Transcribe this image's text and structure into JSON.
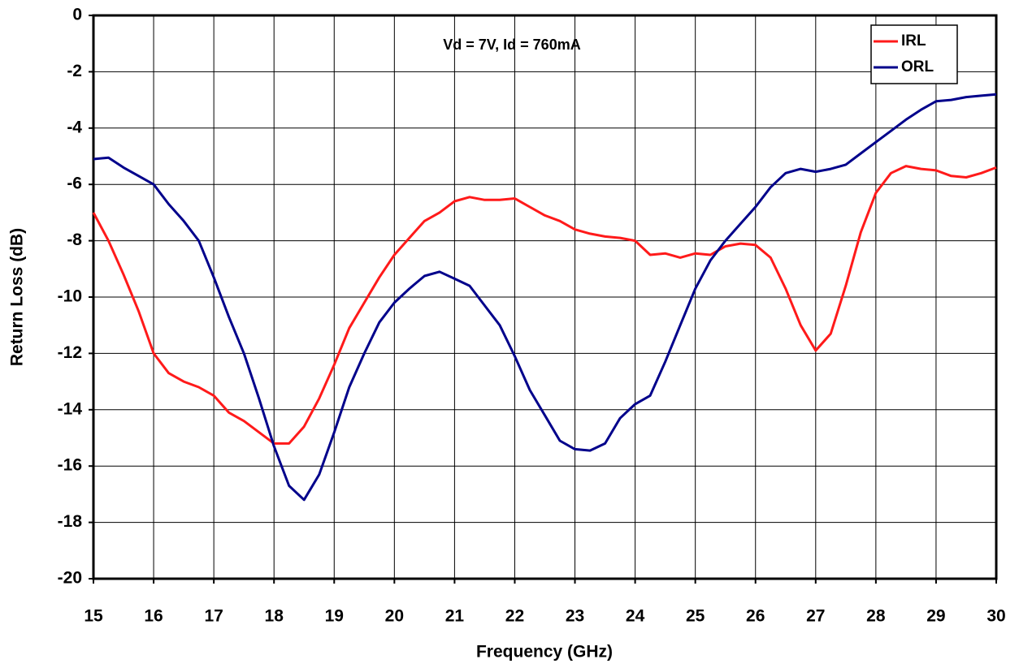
{
  "chart_data": {
    "type": "line",
    "annotation": "Vd = 7V, Id = 760mA",
    "xlabel": "Frequency (GHz)",
    "ylabel": "Return Loss (dB)",
    "x": [
      15,
      15.25,
      15.5,
      15.75,
      16,
      16.25,
      16.5,
      16.75,
      17,
      17.25,
      17.5,
      17.75,
      18,
      18.25,
      18.5,
      18.75,
      19,
      19.25,
      19.5,
      19.75,
      20,
      20.25,
      20.5,
      20.75,
      21,
      21.25,
      21.5,
      21.75,
      22,
      22.25,
      22.5,
      22.75,
      23,
      23.25,
      23.5,
      23.75,
      24,
      24.25,
      24.5,
      24.75,
      25,
      25.25,
      25.5,
      25.75,
      26,
      26.25,
      26.5,
      26.75,
      27,
      27.25,
      27.5,
      27.75,
      28,
      28.25,
      28.5,
      28.75,
      29,
      29.25,
      29.5,
      29.75,
      30
    ],
    "series": [
      {
        "name": "IRL",
        "color": "#ff1a1a",
        "values": [
          -7.0,
          -8.0,
          -9.2,
          -10.5,
          -12.0,
          -12.7,
          -13.0,
          -13.2,
          -13.5,
          -14.1,
          -14.4,
          -14.8,
          -15.2,
          -15.2,
          -14.6,
          -13.6,
          -12.4,
          -11.1,
          -10.2,
          -9.3,
          -8.5,
          -7.9,
          -7.3,
          -7.0,
          -6.6,
          -6.45,
          -6.55,
          -6.55,
          -6.5,
          -6.8,
          -7.1,
          -7.3,
          -7.6,
          -7.75,
          -7.85,
          -7.9,
          -8.0,
          -8.5,
          -8.45,
          -8.6,
          -8.45,
          -8.5,
          -8.2,
          -8.1,
          -8.15,
          -8.6,
          -9.7,
          -11.0,
          -11.9,
          -11.3,
          -9.6,
          -7.7,
          -6.3,
          -5.6,
          -5.35,
          -5.45,
          -5.5,
          -5.7,
          -5.75,
          -5.6,
          -5.4
        ]
      },
      {
        "name": "ORL",
        "color": "#00008b",
        "values": [
          -5.1,
          -5.05,
          -5.4,
          -5.7,
          -6.0,
          -6.7,
          -7.3,
          -8.0,
          -9.3,
          -10.7,
          -12.0,
          -13.6,
          -15.3,
          -16.7,
          -17.2,
          -16.3,
          -14.8,
          -13.2,
          -12.0,
          -10.9,
          -10.2,
          -9.7,
          -9.25,
          -9.1,
          -9.35,
          -9.6,
          -10.3,
          -11.0,
          -12.1,
          -13.3,
          -14.2,
          -15.1,
          -15.4,
          -15.45,
          -15.2,
          -14.3,
          -13.8,
          -13.5,
          -12.3,
          -11.0,
          -9.7,
          -8.7,
          -8.0,
          -7.4,
          -6.8,
          -6.1,
          -5.6,
          -5.45,
          -5.55,
          -5.45,
          -5.3,
          -4.9,
          -4.5,
          -4.1,
          -3.7,
          -3.35,
          -3.05,
          -3.0,
          -2.9,
          -2.85,
          -2.8
        ]
      }
    ],
    "xlim": [
      15,
      30
    ],
    "xticks": [
      15,
      16,
      17,
      18,
      19,
      20,
      21,
      22,
      23,
      24,
      25,
      26,
      27,
      28,
      29,
      30
    ],
    "ylim": [
      -20,
      0
    ],
    "yticks": [
      0,
      -2,
      -4,
      -6,
      -8,
      -10,
      -12,
      -14,
      -16,
      -18,
      -20
    ],
    "grid": true,
    "legend": "upper right"
  }
}
